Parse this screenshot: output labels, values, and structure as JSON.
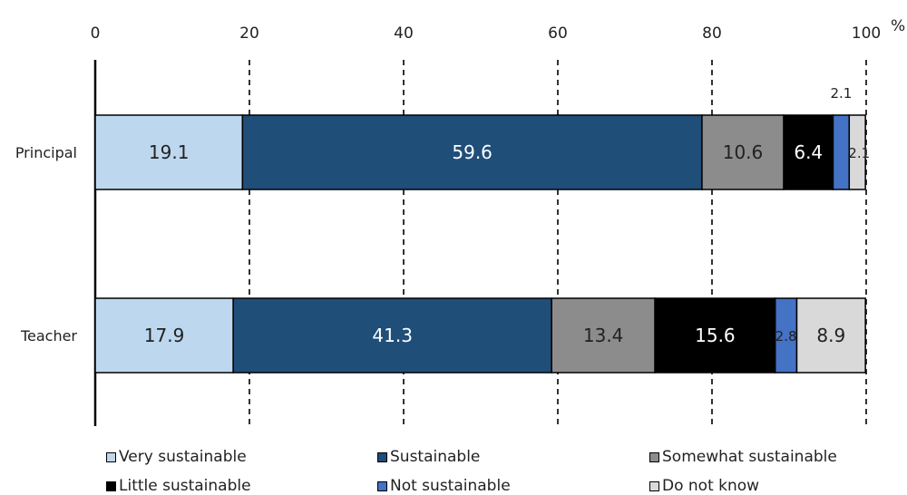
{
  "chart_data": {
    "type": "bar",
    "orientation": "horizontal",
    "stacked": true,
    "unit": "%",
    "xlim": [
      0,
      100
    ],
    "xticks": [
      "0",
      "20",
      "40",
      "60",
      "80",
      "100"
    ],
    "grid": "vertical dashed",
    "legend_position": "bottom",
    "categories": [
      "Principal",
      "Teacher"
    ],
    "series": [
      {
        "name": "Very sustainable",
        "color": "#bdd7ee",
        "label_color": "#222222",
        "values": [
          19.1,
          17.9
        ],
        "labels": [
          "19.1",
          "17.9"
        ]
      },
      {
        "name": "Sustainable",
        "color": "#1f4e79",
        "label_color": "#ffffff",
        "values": [
          59.6,
          41.3
        ],
        "labels": [
          "59.6",
          "41.3"
        ]
      },
      {
        "name": "Somewhat sustainable",
        "color": "#8c8c8c",
        "label_color": "#222222",
        "values": [
          10.6,
          13.4
        ],
        "labels": [
          "10.6",
          "13.4"
        ]
      },
      {
        "name": "Little sustainable",
        "color": "#000000",
        "label_color": "#ffffff",
        "values": [
          6.4,
          15.6
        ],
        "labels": [
          "6.4",
          "15.6"
        ]
      },
      {
        "name": "Not sustainable",
        "color": "#4472c4",
        "label_color": "#222222",
        "values": [
          2.1,
          2.8
        ],
        "labels": [
          "2.1",
          "2.8"
        ]
      },
      {
        "name": "Do not know",
        "color": "#d9d9d9",
        "label_color": "#222222",
        "values": [
          2.1,
          8.9
        ],
        "labels": [
          "2.1",
          "8.9"
        ]
      }
    ]
  }
}
